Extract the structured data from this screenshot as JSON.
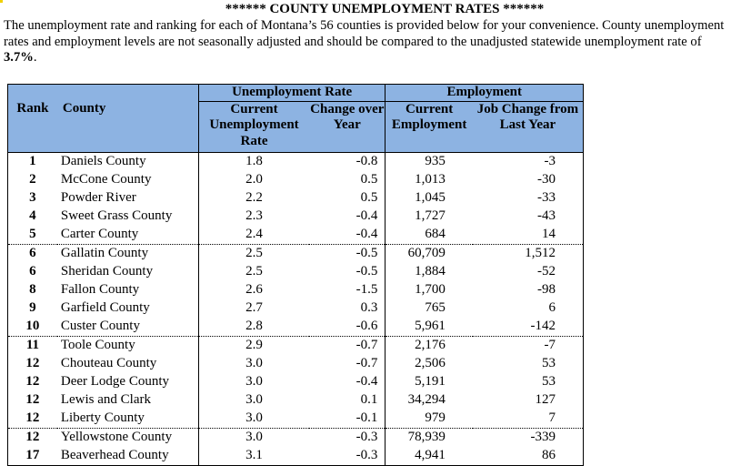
{
  "title": "****** COUNTY UNEMPLOYMENT RATES ******",
  "intro": {
    "text": "The unemployment rate and ranking for each of Montana’s 56 counties is provided below for your convenience.  County unemployment rates and employment levels are not seasonally adjusted and should be compared to the unadjusted statewide unemployment rate of ",
    "rate": "3.7%",
    "end": "."
  },
  "headers": {
    "rank": "Rank",
    "county": "County",
    "group_rate": "Unemployment Rate",
    "group_emp": "Employment",
    "current_rate": "Current Unemployment Rate",
    "change_year": "Change over Year",
    "current_emp": "Current Employment",
    "job_change": "Job Change from Last Year"
  },
  "rows": [
    [
      "1",
      "Daniels County",
      "1.8",
      "-0.8",
      "935",
      "-3"
    ],
    [
      "2",
      "McCone County",
      "2.0",
      "0.5",
      "1,013",
      "-30"
    ],
    [
      "3",
      "Powder River",
      "2.2",
      "0.5",
      "1,045",
      "-33"
    ],
    [
      "4",
      "Sweet Grass County",
      "2.3",
      "-0.4",
      "1,727",
      "-43"
    ],
    [
      "5",
      "Carter County",
      "2.4",
      "-0.4",
      "684",
      "14"
    ],
    [
      "6",
      "Gallatin County",
      "2.5",
      "-0.5",
      "60,709",
      "1,512"
    ],
    [
      "6",
      "Sheridan County",
      "2.5",
      "-0.5",
      "1,884",
      "-52"
    ],
    [
      "8",
      "Fallon County",
      "2.6",
      "-1.5",
      "1,700",
      "-98"
    ],
    [
      "9",
      "Garfield County",
      "2.7",
      "0.3",
      "765",
      "6"
    ],
    [
      "10",
      "Custer County",
      "2.8",
      "-0.6",
      "5,961",
      "-142"
    ],
    [
      "11",
      "Toole County",
      "2.9",
      "-0.7",
      "2,176",
      "-7"
    ],
    [
      "12",
      "Chouteau County",
      "3.0",
      "-0.7",
      "2,506",
      "53"
    ],
    [
      "12",
      "Deer Lodge County",
      "3.0",
      "-0.4",
      "5,191",
      "53"
    ],
    [
      "12",
      "Lewis and Clark",
      "3.0",
      "0.1",
      "34,294",
      "127"
    ],
    [
      "12",
      "Liberty County",
      "3.0",
      "-0.1",
      "979",
      "7"
    ],
    [
      "12",
      "Yellowstone County",
      "3.0",
      "-0.3",
      "78,939",
      "-339"
    ],
    [
      "17",
      "Beaverhead County",
      "3.1",
      "-0.3",
      "4,941",
      "86"
    ]
  ]
}
